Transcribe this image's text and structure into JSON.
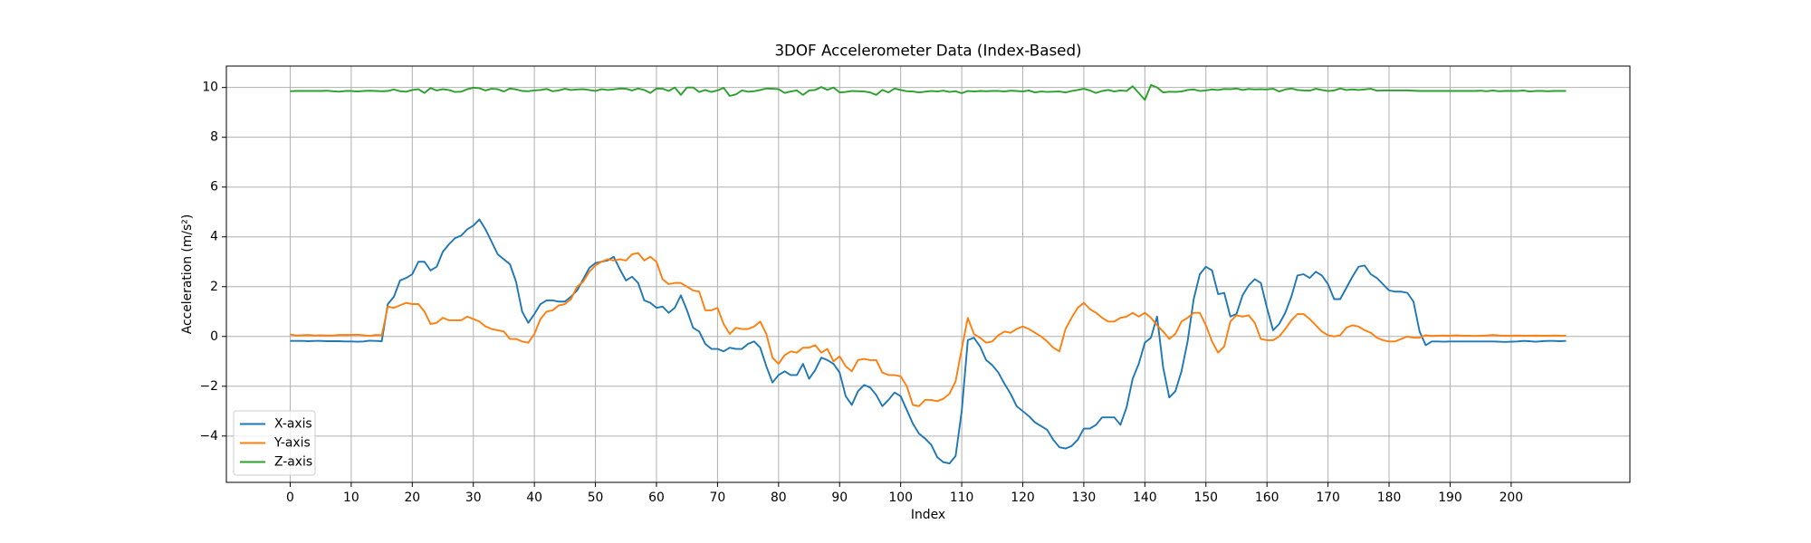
{
  "chart_data": {
    "type": "line",
    "title": "3DOF Accelerometer Data (Index-Based)",
    "x_label": "Index",
    "y_label": "Acceleration (m/s²)",
    "x": [
      0,
      1,
      2,
      3,
      4,
      5,
      6,
      7,
      8,
      9,
      10,
      11,
      12,
      13,
      14,
      15,
      16,
      17,
      18,
      19,
      20,
      21,
      22,
      23,
      24,
      25,
      26,
      27,
      28,
      29,
      30,
      31,
      32,
      33,
      34,
      35,
      36,
      37,
      38,
      39,
      40,
      41,
      42,
      43,
      44,
      45,
      46,
      47,
      48,
      49,
      50,
      51,
      52,
      53,
      54,
      55,
      56,
      57,
      58,
      59,
      60,
      61,
      62,
      63,
      64,
      65,
      66,
      67,
      68,
      69,
      70,
      71,
      72,
      73,
      74,
      75,
      76,
      77,
      78,
      79,
      80,
      81,
      82,
      83,
      84,
      85,
      86,
      87,
      88,
      89,
      90,
      91,
      92,
      93,
      94,
      95,
      96,
      97,
      98,
      99,
      100,
      101,
      102,
      103,
      104,
      105,
      106,
      107,
      108,
      109,
      110,
      111,
      112,
      113,
      114,
      115,
      116,
      117,
      118,
      119,
      120,
      121,
      122,
      123,
      124,
      125,
      126,
      127,
      128,
      129,
      130,
      131,
      132,
      133,
      134,
      135,
      136,
      137,
      138,
      139,
      140,
      141,
      142,
      143,
      144,
      145,
      146,
      147,
      148,
      149,
      150,
      151,
      152,
      153,
      154,
      155,
      156,
      157,
      158,
      159,
      160,
      161,
      162,
      163,
      164,
      165,
      166,
      167,
      168,
      169,
      170,
      171,
      172,
      173,
      174,
      175,
      176,
      177,
      178,
      179,
      180,
      181,
      182,
      183,
      184,
      185,
      186,
      187,
      188,
      189,
      190,
      191,
      192,
      193,
      194,
      195,
      196,
      197,
      198,
      199,
      200,
      201,
      202,
      203,
      204,
      205,
      206,
      207,
      208,
      209
    ],
    "series": [
      {
        "name": "X-axis",
        "color": "#1f77b4",
        "values": [
          -0.18,
          -0.18,
          -0.18,
          -0.19,
          -0.18,
          -0.18,
          -0.19,
          -0.19,
          -0.19,
          -0.2,
          -0.2,
          -0.21,
          -0.2,
          -0.17,
          -0.18,
          -0.19,
          1.3,
          1.6,
          2.25,
          2.35,
          2.5,
          3.0,
          3.0,
          2.65,
          2.8,
          3.4,
          3.7,
          3.95,
          4.05,
          4.3,
          4.45,
          4.7,
          4.3,
          3.8,
          3.3,
          3.1,
          2.9,
          2.2,
          1.0,
          0.55,
          0.9,
          1.3,
          1.45,
          1.45,
          1.4,
          1.4,
          1.6,
          1.85,
          2.3,
          2.75,
          2.95,
          3.0,
          3.05,
          3.2,
          2.7,
          2.25,
          2.4,
          2.15,
          1.45,
          1.35,
          1.15,
          1.2,
          0.95,
          1.15,
          1.65,
          1.05,
          0.35,
          0.2,
          -0.3,
          -0.5,
          -0.5,
          -0.6,
          -0.45,
          -0.5,
          -0.5,
          -0.3,
          -0.2,
          -0.45,
          -1.2,
          -1.85,
          -1.55,
          -1.4,
          -1.55,
          -1.55,
          -1.1,
          -1.7,
          -1.35,
          -0.85,
          -0.95,
          -1.1,
          -1.45,
          -2.4,
          -2.75,
          -2.2,
          -1.95,
          -2.05,
          -2.35,
          -2.8,
          -2.55,
          -2.25,
          -2.4,
          -2.95,
          -3.5,
          -3.9,
          -4.1,
          -4.35,
          -4.85,
          -5.05,
          -5.1,
          -4.8,
          -3.0,
          -0.15,
          -0.05,
          -0.4,
          -0.95,
          -1.15,
          -1.45,
          -1.9,
          -2.3,
          -2.8,
          -3.0,
          -3.2,
          -3.45,
          -3.6,
          -3.75,
          -4.15,
          -4.45,
          -4.5,
          -4.4,
          -4.15,
          -3.7,
          -3.7,
          -3.55,
          -3.25,
          -3.25,
          -3.25,
          -3.55,
          -2.85,
          -1.7,
          -1.1,
          -0.25,
          -0.05,
          0.8,
          -1.25,
          -2.45,
          -2.2,
          -1.4,
          -0.2,
          1.5,
          2.5,
          2.8,
          2.65,
          1.7,
          1.75,
          0.8,
          0.9,
          1.65,
          2.05,
          2.3,
          2.15,
          1.15,
          0.25,
          0.5,
          0.95,
          1.6,
          2.45,
          2.5,
          2.35,
          2.6,
          2.45,
          2.1,
          1.5,
          1.5,
          1.95,
          2.4,
          2.8,
          2.85,
          2.5,
          2.35,
          2.1,
          1.85,
          1.8,
          1.8,
          1.75,
          1.4,
          0.2,
          -0.35,
          -0.2,
          -0.2,
          -0.21,
          -0.2,
          -0.2,
          -0.2,
          -0.2,
          -0.2,
          -0.2,
          -0.2,
          -0.2,
          -0.21,
          -0.22,
          -0.21,
          -0.2,
          -0.18,
          -0.19,
          -0.21,
          -0.19,
          -0.18,
          -0.18,
          -0.19,
          -0.18
        ]
      },
      {
        "name": "Y-axis",
        "color": "#ff7f0e",
        "values": [
          0.08,
          0.04,
          0.05,
          0.06,
          0.04,
          0.05,
          0.04,
          0.04,
          0.06,
          0.06,
          0.06,
          0.07,
          0.05,
          0.02,
          0.06,
          0.05,
          1.2,
          1.15,
          1.25,
          1.35,
          1.3,
          1.3,
          1.0,
          0.5,
          0.55,
          0.75,
          0.65,
          0.65,
          0.65,
          0.8,
          0.7,
          0.6,
          0.4,
          0.3,
          0.25,
          0.2,
          -0.1,
          -0.1,
          -0.2,
          -0.25,
          0.1,
          0.7,
          1.0,
          1.05,
          1.25,
          1.3,
          1.5,
          2.0,
          2.2,
          2.6,
          2.85,
          3.0,
          3.1,
          3.05,
          3.1,
          3.05,
          3.3,
          3.35,
          3.05,
          3.2,
          3.0,
          2.3,
          2.1,
          2.15,
          2.15,
          2.0,
          1.85,
          1.8,
          1.05,
          1.05,
          1.15,
          0.5,
          0.1,
          0.35,
          0.3,
          0.3,
          0.4,
          0.6,
          0.1,
          -0.85,
          -1.1,
          -0.75,
          -0.6,
          -0.65,
          -0.45,
          -0.45,
          -0.35,
          -0.65,
          -0.5,
          -1.0,
          -0.8,
          -1.2,
          -1.4,
          -0.95,
          -0.9,
          -0.95,
          -0.95,
          -1.45,
          -1.55,
          -1.55,
          -1.6,
          -2.0,
          -2.75,
          -2.8,
          -2.55,
          -2.55,
          -2.6,
          -2.5,
          -2.3,
          -1.8,
          -0.5,
          0.75,
          0.1,
          -0.05,
          -0.25,
          -0.2,
          0.05,
          0.2,
          0.15,
          0.3,
          0.4,
          0.3,
          0.15,
          0.0,
          -0.2,
          -0.45,
          -0.6,
          0.3,
          0.75,
          1.15,
          1.35,
          1.1,
          0.95,
          0.75,
          0.6,
          0.6,
          0.75,
          0.8,
          0.95,
          0.8,
          0.95,
          0.75,
          0.45,
          0.2,
          -0.1,
          0.1,
          0.6,
          0.75,
          0.95,
          0.95,
          0.45,
          -0.2,
          -0.65,
          -0.4,
          0.6,
          0.85,
          0.8,
          0.85,
          0.55,
          -0.1,
          -0.15,
          -0.15,
          0.0,
          0.3,
          0.65,
          0.9,
          0.9,
          0.7,
          0.45,
          0.2,
          0.05,
          0.0,
          0.05,
          0.35,
          0.45,
          0.4,
          0.25,
          0.15,
          -0.05,
          -0.15,
          -0.2,
          -0.2,
          -0.1,
          0.0,
          -0.05,
          -0.05,
          0.05,
          0.02,
          0.03,
          0.04,
          0.03,
          0.05,
          0.03,
          0.03,
          0.02,
          0.03,
          0.04,
          0.06,
          0.04,
          0.03,
          0.03,
          0.04,
          0.03,
          0.03,
          0.04,
          0.03,
          0.03,
          0.04,
          0.03,
          0.03
        ]
      },
      {
        "name": "Z-axis",
        "color": "#2ca02c",
        "values": [
          9.85,
          9.86,
          9.86,
          9.86,
          9.86,
          9.86,
          9.87,
          9.85,
          9.83,
          9.86,
          9.86,
          9.84,
          9.86,
          9.87,
          9.86,
          9.85,
          9.86,
          9.92,
          9.85,
          9.83,
          9.9,
          9.93,
          9.78,
          9.98,
          9.88,
          9.93,
          9.9,
          9.82,
          9.83,
          9.93,
          9.99,
          9.97,
          9.88,
          9.95,
          9.93,
          9.84,
          9.96,
          9.92,
          9.86,
          9.85,
          9.88,
          9.9,
          9.94,
          9.85,
          9.88,
          9.95,
          9.9,
          9.92,
          9.93,
          9.9,
          9.86,
          9.93,
          9.9,
          9.92,
          9.96,
          9.95,
          9.88,
          9.96,
          9.9,
          9.78,
          9.96,
          9.95,
          9.86,
          10.0,
          9.7,
          10.0,
          10.0,
          9.82,
          9.9,
          9.82,
          9.88,
          9.99,
          9.66,
          9.72,
          9.88,
          9.83,
          9.85,
          9.9,
          9.96,
          9.95,
          9.93,
          9.78,
          9.84,
          9.88,
          9.7,
          9.88,
          9.9,
          10.02,
          9.9,
          10.0,
          9.8,
          9.82,
          9.86,
          9.85,
          9.84,
          9.8,
          9.7,
          9.9,
          9.8,
          9.96,
          9.9,
          9.85,
          9.84,
          9.8,
          9.83,
          9.86,
          9.84,
          9.87,
          9.82,
          9.85,
          9.77,
          9.86,
          9.84,
          9.86,
          9.85,
          9.86,
          9.86,
          9.84,
          9.87,
          9.86,
          9.84,
          9.88,
          9.8,
          9.84,
          9.82,
          9.83,
          9.84,
          9.8,
          9.86,
          9.9,
          9.95,
          9.88,
          9.78,
          9.86,
          9.9,
          9.84,
          9.88,
          9.86,
          10.05,
          9.78,
          9.5,
          10.1,
          10.0,
          9.8,
          9.83,
          9.82,
          9.84,
          9.9,
          9.92,
          9.86,
          9.88,
          9.92,
          9.9,
          9.94,
          9.93,
          9.96,
          9.9,
          9.94,
          9.92,
          9.93,
          9.92,
          9.95,
          9.84,
          9.92,
          9.96,
          9.9,
          9.88,
          9.87,
          9.95,
          9.9,
          9.86,
          9.88,
          9.96,
          9.9,
          9.92,
          9.9,
          9.92,
          9.95,
          9.87,
          9.88,
          9.88,
          9.88,
          9.88,
          9.88,
          9.87,
          9.86,
          9.86,
          9.86,
          9.86,
          9.86,
          9.86,
          9.86,
          9.86,
          9.86,
          9.86,
          9.87,
          9.85,
          9.88,
          9.85,
          9.86,
          9.86,
          9.86,
          9.88,
          9.84,
          9.86,
          9.86,
          9.85,
          9.86,
          9.86,
          9.86
        ]
      }
    ],
    "xlim": [
      -10.45,
      219.45
    ],
    "ylim": [
      -5.86,
      10.86
    ],
    "xticks": [
      0,
      10,
      20,
      30,
      40,
      50,
      60,
      70,
      80,
      90,
      100,
      110,
      120,
      130,
      140,
      150,
      160,
      170,
      180,
      190,
      200
    ],
    "yticks": [
      {
        "value": -4,
        "label": "−4"
      },
      {
        "value": -2,
        "label": "−2"
      },
      0,
      2,
      4,
      6,
      8,
      10
    ],
    "grid": true,
    "legend": "lower left"
  }
}
